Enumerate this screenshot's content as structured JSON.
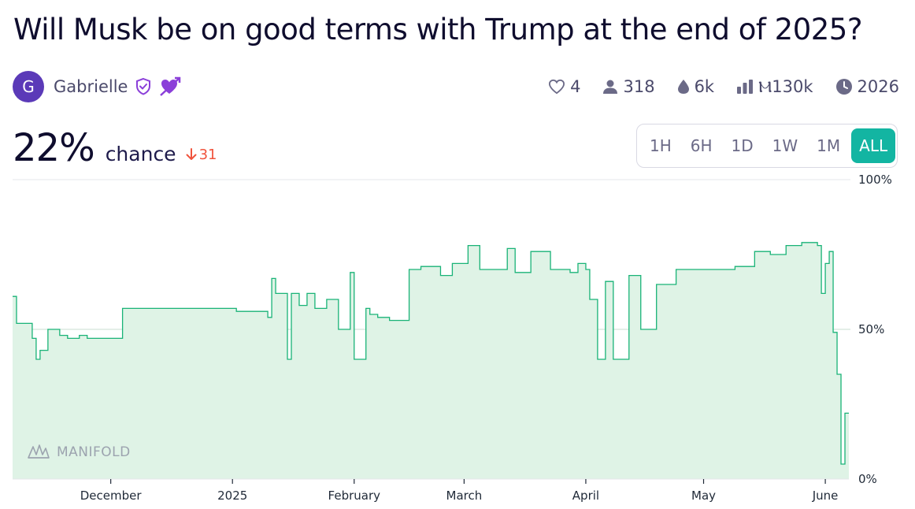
{
  "title": "Will Musk be on good terms with Trump at the end of 2025?",
  "author": {
    "initial": "G",
    "name": "Gabrielle"
  },
  "stats": {
    "likes": "4",
    "traders": "318",
    "liquidity": "6k",
    "volume": "Ⲙ130k",
    "close": "2026"
  },
  "probability": {
    "value": "22%",
    "label": "chance",
    "change": "31"
  },
  "time_ranges": [
    "1H",
    "6H",
    "1D",
    "1W",
    "1M",
    "ALL"
  ],
  "selected_range": "ALL",
  "watermark": "MANIFOLD",
  "colors": {
    "line": "#19b377",
    "fill": "#dff3e6",
    "accent": "#13b5a2",
    "down": "#f0533c"
  },
  "chart_data": {
    "type": "area",
    "title": "",
    "xlabel": "",
    "ylabel": "",
    "x_ticks": [
      "December",
      "2025",
      "February",
      "March",
      "April",
      "May",
      "June"
    ],
    "y_ticks": [
      "100%",
      "50%",
      "0%"
    ],
    "ylim": [
      0,
      100
    ],
    "xlim": [
      "2024-11-06",
      "2025-06-07"
    ],
    "grid": true,
    "series": [
      {
        "x": [
          "2024-11-06",
          "2024-11-07",
          "2024-11-11",
          "2024-11-12",
          "2024-11-13",
          "2024-11-15",
          "2024-11-16",
          "2024-11-18",
          "2024-11-20",
          "2024-11-23",
          "2024-11-25",
          "2024-12-04",
          "2024-12-20",
          "2025-01-02",
          "2025-01-10",
          "2025-01-11",
          "2025-01-12",
          "2025-01-15",
          "2025-01-16",
          "2025-01-18",
          "2025-01-20",
          "2025-01-22",
          "2025-01-25",
          "2025-01-28",
          "2025-01-31",
          "2025-02-01",
          "2025-02-04",
          "2025-02-05",
          "2025-02-07",
          "2025-02-10",
          "2025-02-15",
          "2025-02-18",
          "2025-02-23",
          "2025-02-26",
          "2025-03-02",
          "2025-03-05",
          "2025-03-08",
          "2025-03-12",
          "2025-03-14",
          "2025-03-18",
          "2025-03-23",
          "2025-03-28",
          "2025-03-30",
          "2025-04-01",
          "2025-04-02",
          "2025-04-04",
          "2025-04-06",
          "2025-04-08",
          "2025-04-12",
          "2025-04-15",
          "2025-04-19",
          "2025-04-24",
          "2025-05-03",
          "2025-05-09",
          "2025-05-14",
          "2025-05-18",
          "2025-05-22",
          "2025-05-26",
          "2025-05-29",
          "2025-05-30",
          "2025-05-31",
          "2025-06-01",
          "2025-06-02",
          "2025-06-03",
          "2025-06-04",
          "2025-06-05",
          "2025-06-06",
          "2025-06-07"
        ],
        "y": [
          61,
          52,
          47,
          40,
          43,
          50,
          50,
          48,
          47,
          48,
          47,
          57,
          57,
          56,
          54,
          67,
          62,
          40,
          62,
          58,
          62,
          57,
          60,
          50,
          69,
          40,
          57,
          55,
          54,
          53,
          70,
          71,
          68,
          72,
          78,
          70,
          70,
          77,
          69,
          76,
          70,
          69,
          72,
          70,
          60,
          40,
          66,
          40,
          68,
          50,
          65,
          70,
          70,
          71,
          76,
          75,
          78,
          79,
          79,
          78,
          62,
          72,
          76,
          49,
          35,
          5,
          22,
          22
        ]
      }
    ]
  }
}
